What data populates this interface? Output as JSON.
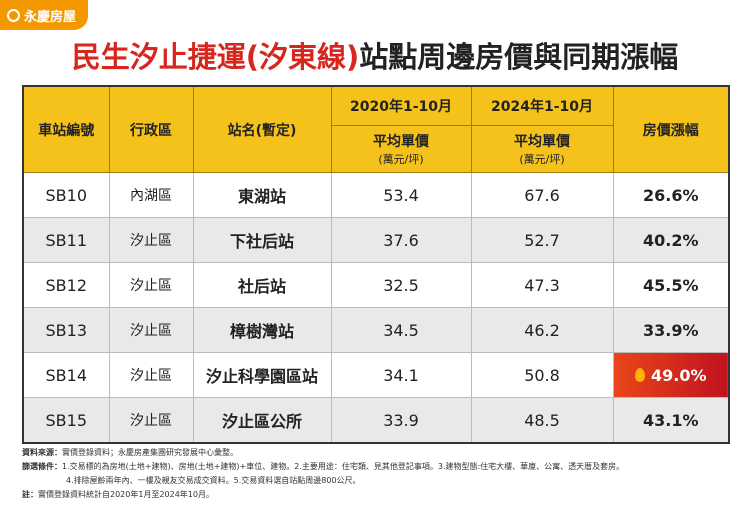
{
  "header": {
    "logo": "永慶房屋"
  },
  "title": {
    "highlight": "民生汐止捷運(汐東線)",
    "rest": "站點周邊房價與同期漲幅"
  },
  "table": {
    "columns": [
      "車站編號",
      "行政區",
      "站名(暫定)",
      "2020年1-10月",
      "2024年1-10月",
      "房價漲幅"
    ],
    "subheaders": [
      {
        "label": "平均單價",
        "unit": "(萬元/坪)"
      },
      {
        "label": "平均單價",
        "unit": "(萬元/坪)"
      }
    ],
    "rows": [
      [
        "SB10",
        "內湖區",
        "東湖站",
        "53.4",
        "67.6",
        "26.6%"
      ],
      [
        "SB11",
        "汐止區",
        "下社后站",
        "37.6",
        "52.7",
        "40.2%"
      ],
      [
        "SB12",
        "汐止區",
        "社后站",
        "32.5",
        "47.3",
        "45.5%"
      ],
      [
        "SB13",
        "汐止區",
        "樟樹灣站",
        "34.5",
        "46.2",
        "33.9%"
      ],
      [
        "SB14",
        "汐止區",
        "汐止科學園區站",
        "34.1",
        "50.8",
        "49.0%"
      ],
      [
        "SB15",
        "汐止區",
        "汐止區公所",
        "33.9",
        "48.5",
        "43.1%"
      ]
    ]
  },
  "notes": [
    {
      "label": "資料來源：",
      "text": "實價登錄資料；永慶房產集團研究發展中心彙整。"
    },
    {
      "label": "篩選條件：",
      "text": "1.交易標的為房地(土地+建物)、房地(土地+建物)+車位、建物。2.主要用途：住宅類、見其他登記事項。3.建物型態:住宅大樓、華廈、公寓、透天厝及套房。"
    },
    {
      "label": "",
      "text": "4.排除屋齡兩年內、一樓及親友交易成交資料。5.交易資料選自站點周邊800公尺。"
    },
    {
      "label": "註：",
      "text": "實價登錄資料統計自2020年1月至2024年10月。"
    }
  ]
}
